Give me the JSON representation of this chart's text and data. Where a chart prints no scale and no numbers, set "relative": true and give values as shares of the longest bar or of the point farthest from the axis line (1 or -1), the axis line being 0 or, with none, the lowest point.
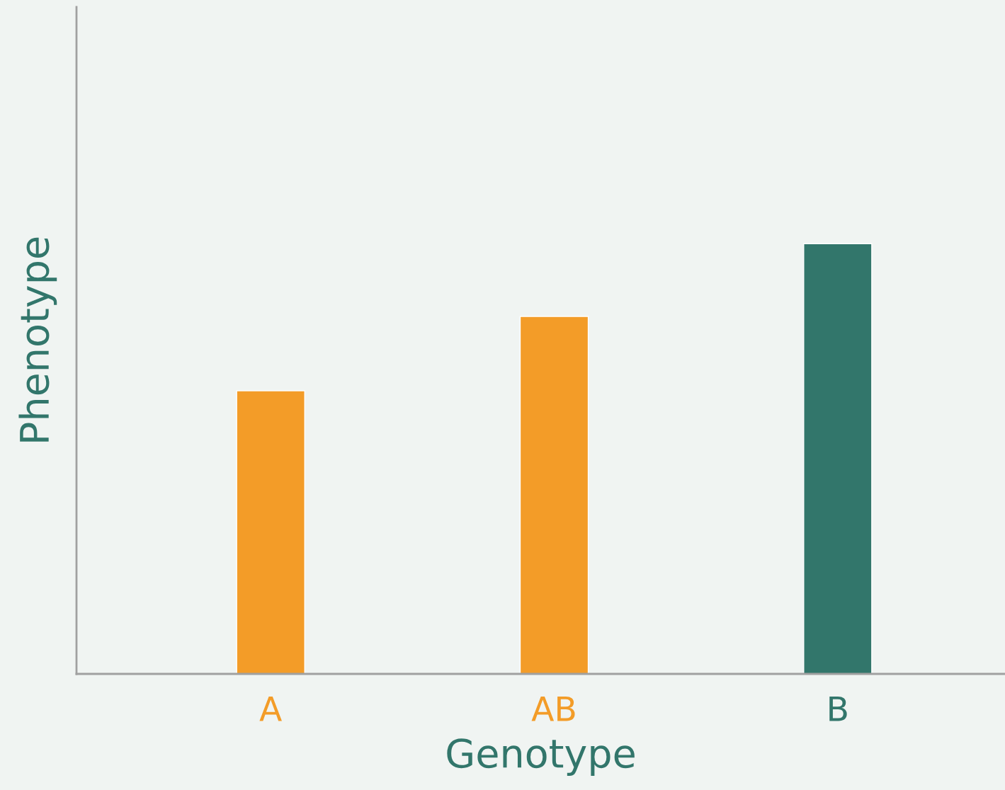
{
  "chart_data": {
    "type": "bar",
    "xlabel": "Genotype",
    "ylabel": "Phenotype",
    "categories": [
      "A",
      "AB",
      "B"
    ],
    "values": [
      0.658,
      0.831,
      1
    ],
    "colors": [
      "#f39c28",
      "#f39c28",
      "#32766b"
    ],
    "relative": true,
    "grid": false,
    "legend": false
  }
}
